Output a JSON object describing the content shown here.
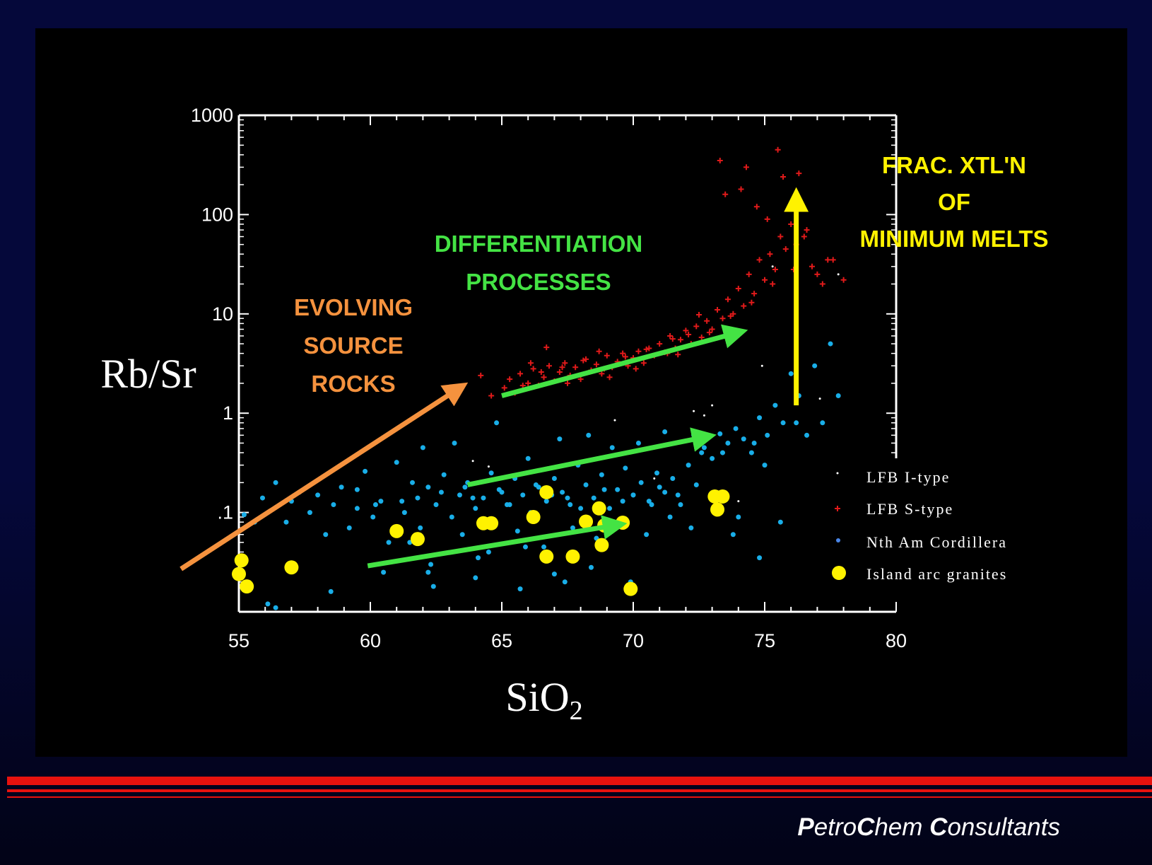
{
  "footer": {
    "brand_parts": [
      {
        "text": "P",
        "bold": true
      },
      {
        "text": "etro",
        "bold": false
      },
      {
        "text": "C",
        "bold": true
      },
      {
        "text": "hem ",
        "bold": false
      },
      {
        "text": "C",
        "bold": true
      },
      {
        "text": "onsultants",
        "bold": false
      }
    ]
  },
  "colors": {
    "background": "#05083a",
    "panel": "#000000",
    "rule": "#e8120e",
    "axis": "#ffffff",
    "i_type": "#ffffff",
    "s_type": "#e01a1a",
    "cordillera": "#19aee8",
    "island_arc": "#fff200",
    "evolving_arrow": "#f5923e",
    "differentiation_arrow": "#44e344",
    "fractionation_arrow": "#fff200"
  },
  "chart_data": {
    "type": "scatter",
    "title": "",
    "xlabel": "SiO",
    "xlabel_subscript": "2",
    "ylabel": "Rb/Sr",
    "xlim": [
      55,
      80
    ],
    "ylim": [
      0.01,
      1000
    ],
    "y_scale": "log",
    "x_ticks": [
      55,
      60,
      65,
      70,
      75,
      80
    ],
    "x_tick_labels": [
      "55",
      "60",
      "65",
      "70",
      "75",
      "80"
    ],
    "y_ticks": [
      0.1,
      1,
      10,
      100,
      1000
    ],
    "y_tick_labels": [
      ".1",
      "1",
      "10",
      "100",
      "1000"
    ],
    "legend_position": "bottom-right",
    "series": [
      {
        "name": "LFB I-type",
        "marker": "dot",
        "color": "#ffffff",
        "x": [
          63.9,
          69.3,
          72.3,
          72.7,
          73.0,
          74.0,
          74.9,
          75.3,
          77.1,
          77.8,
          64.5,
          70.8
        ],
        "y": [
          0.33,
          0.85,
          1.05,
          0.95,
          1.2,
          0.13,
          3.0,
          30,
          1.4,
          25,
          0.29,
          0.22
        ]
      },
      {
        "name": "LFB S-type",
        "marker": "plus",
        "color": "#e01a1a",
        "x": [
          63.3,
          64.2,
          64.6,
          65.1,
          65.3,
          65.5,
          65.7,
          66.0,
          66.2,
          66.4,
          66.6,
          66.8,
          67.0,
          67.2,
          67.4,
          67.6,
          67.8,
          68.0,
          68.2,
          68.4,
          68.6,
          68.8,
          69.0,
          69.2,
          69.4,
          69.6,
          69.8,
          70.0,
          70.2,
          70.4,
          70.6,
          70.8,
          71.0,
          71.2,
          71.4,
          71.6,
          71.8,
          72.0,
          72.2,
          72.4,
          72.6,
          72.8,
          73.0,
          73.2,
          73.4,
          73.6,
          73.8,
          74.0,
          74.2,
          74.4,
          74.6,
          74.8,
          75.0,
          75.2,
          75.4,
          75.6,
          75.8,
          76.0,
          76.2,
          76.4,
          76.6,
          76.8,
          77.0,
          77.2,
          77.6,
          78.0,
          65.8,
          66.5,
          67.3,
          68.1,
          68.9,
          69.7,
          70.5,
          71.3,
          72.1,
          72.9,
          73.7,
          74.5,
          75.3,
          76.1,
          66.1,
          67.5,
          68.7,
          70.1,
          71.5,
          72.5,
          73.5,
          74.3,
          75.1,
          75.7,
          76.5,
          73.3,
          74.1,
          74.7,
          75.5,
          76.3,
          77.4,
          66.7,
          69.1,
          71.7
        ],
        "y": [
          1.7,
          2.4,
          1.5,
          1.8,
          2.2,
          1.6,
          2.5,
          2.0,
          2.8,
          1.9,
          2.3,
          3.0,
          2.1,
          2.6,
          3.2,
          2.4,
          2.9,
          2.2,
          3.5,
          2.7,
          3.1,
          2.5,
          3.8,
          2.9,
          3.3,
          4.0,
          3.0,
          3.6,
          4.2,
          3.2,
          4.5,
          3.8,
          5.0,
          4.1,
          6.0,
          4.5,
          5.5,
          6.8,
          5.0,
          7.5,
          5.8,
          8.5,
          7.0,
          11,
          9.0,
          14,
          10,
          18,
          12,
          25,
          16,
          35,
          22,
          40,
          28,
          60,
          45,
          80,
          50,
          120,
          70,
          30,
          25,
          20,
          35,
          22,
          1.9,
          2.6,
          2.9,
          3.4,
          2.8,
          3.7,
          4.4,
          4.0,
          6.2,
          6.5,
          9.5,
          13,
          20,
          28,
          3.2,
          2.0,
          4.2,
          2.8,
          5.6,
          9.8,
          160,
          300,
          90,
          240,
          60,
          350,
          180,
          120,
          450,
          260,
          35,
          4.6,
          2.3,
          3.9
        ]
      },
      {
        "name": "Nth Am Cordillera",
        "marker": "dot",
        "color": "#19aee8",
        "x": [
          55.2,
          55.6,
          55.9,
          56.1,
          56.4,
          56.8,
          57.0,
          57.3,
          57.7,
          58.0,
          58.3,
          58.6,
          58.9,
          59.2,
          59.5,
          59.8,
          60.1,
          60.4,
          60.7,
          61.0,
          61.3,
          61.6,
          61.9,
          62.2,
          62.5,
          62.8,
          63.1,
          63.4,
          63.7,
          64.0,
          64.3,
          64.6,
          64.9,
          65.2,
          65.5,
          65.8,
          66.1,
          66.4,
          66.7,
          67.0,
          67.3,
          67.6,
          67.9,
          68.2,
          68.5,
          68.8,
          69.1,
          69.4,
          69.7,
          70.0,
          70.3,
          70.6,
          70.9,
          71.2,
          71.5,
          71.8,
          72.1,
          72.4,
          72.7,
          73.0,
          73.3,
          73.6,
          73.9,
          74.2,
          74.5,
          74.8,
          75.1,
          75.4,
          75.7,
          76.0,
          76.3,
          76.6,
          76.9,
          77.2,
          77.5,
          77.8,
          60.5,
          61.5,
          62.3,
          63.5,
          64.5,
          65.6,
          66.6,
          67.7,
          68.6,
          69.5,
          70.5,
          71.4,
          72.2,
          73.1,
          74.0,
          62.0,
          63.2,
          64.8,
          66.0,
          67.2,
          68.3,
          69.2,
          70.2,
          71.2,
          72.6,
          61.2,
          62.7,
          63.9,
          65.3,
          66.9,
          68.0,
          69.6,
          70.7,
          71.7,
          59.5,
          60.2,
          61.8,
          63.6,
          65.0,
          66.3,
          67.5,
          68.9,
          70.0,
          71.0,
          62.4,
          64.0,
          65.7,
          67.0,
          68.4,
          69.9,
          56.4,
          58.5,
          62.2,
          64.1,
          65.9,
          67.4,
          73.8,
          74.8,
          75.6,
          76.2,
          72.3,
          73.4,
          74.6,
          75.0
        ],
        "y": [
          0.095,
          0.08,
          0.14,
          0.012,
          0.2,
          0.08,
          0.13,
          0.16,
          0.1,
          0.15,
          0.06,
          0.12,
          0.18,
          0.07,
          0.11,
          0.26,
          0.09,
          0.13,
          0.05,
          0.32,
          0.1,
          0.2,
          0.07,
          0.18,
          0.12,
          0.24,
          0.09,
          0.15,
          0.2,
          0.11,
          0.14,
          0.25,
          0.17,
          0.12,
          0.22,
          0.15,
          0.1,
          0.18,
          0.13,
          0.22,
          0.16,
          0.12,
          0.3,
          0.19,
          0.14,
          0.24,
          0.11,
          0.17,
          0.28,
          0.15,
          0.2,
          0.13,
          0.25,
          0.16,
          0.22,
          0.12,
          0.3,
          0.19,
          0.45,
          0.35,
          0.62,
          0.5,
          0.7,
          0.55,
          0.4,
          0.9,
          0.6,
          1.2,
          0.8,
          2.5,
          1.5,
          0.6,
          3.0,
          0.8,
          5.0,
          1.5,
          0.025,
          0.05,
          0.03,
          0.06,
          0.04,
          0.065,
          0.045,
          0.07,
          0.055,
          0.08,
          0.06,
          0.09,
          0.07,
          0.11,
          0.09,
          0.45,
          0.5,
          0.8,
          0.35,
          0.55,
          0.6,
          0.45,
          0.5,
          0.65,
          0.4,
          0.13,
          0.16,
          0.14,
          0.12,
          0.15,
          0.11,
          0.13,
          0.12,
          0.15,
          0.17,
          0.12,
          0.14,
          0.18,
          0.16,
          0.19,
          0.14,
          0.17,
          0.15,
          0.18,
          0.018,
          0.022,
          0.017,
          0.024,
          0.028,
          0.02,
          0.011,
          0.016,
          0.025,
          0.035,
          0.045,
          0.02,
          0.06,
          0.035,
          0.08,
          0.8,
          0.6,
          0.4,
          0.5,
          0.3
        ]
      },
      {
        "name": "Island arc granites",
        "marker": "circle",
        "color": "#fff200",
        "x": [
          55.1,
          55.0,
          55.3,
          57.0,
          61.0,
          61.8,
          64.3,
          64.6,
          66.2,
          66.7,
          66.7,
          67.7,
          68.2,
          68.7,
          68.8,
          68.9,
          69.6,
          69.9,
          73.1,
          73.4,
          73.2
        ],
        "y": [
          0.033,
          0.024,
          0.018,
          0.028,
          0.065,
          0.054,
          0.078,
          0.078,
          0.09,
          0.16,
          0.036,
          0.036,
          0.081,
          0.11,
          0.047,
          0.074,
          0.079,
          0.017,
          0.145,
          0.145,
          0.107
        ]
      }
    ],
    "annotations": [
      {
        "kind": "arrow",
        "color": "#f5923e",
        "from": [
          52.8,
          0.027
        ],
        "to": [
          63.4,
          1.8
        ]
      },
      {
        "kind": "arrow",
        "color": "#44e344",
        "from": [
          65.0,
          1.5
        ],
        "to": [
          74.0,
          6.5
        ]
      },
      {
        "kind": "arrow",
        "color": "#44e344",
        "from": [
          63.7,
          0.19
        ],
        "to": [
          72.8,
          0.58
        ]
      },
      {
        "kind": "arrow",
        "color": "#44e344",
        "from": [
          59.9,
          0.029
        ],
        "to": [
          69.4,
          0.075
        ]
      },
      {
        "kind": "arrow",
        "color": "#fff200",
        "from": [
          76.2,
          1.2
        ],
        "to": [
          76.2,
          150
        ]
      }
    ],
    "labels": [
      {
        "lines": [
          "EVOLVING",
          "SOURCE",
          "ROCKS"
        ],
        "color": "#f5923e"
      },
      {
        "lines": [
          "DIFFERENTIATION",
          "PROCESSES"
        ],
        "color": "#44e344"
      },
      {
        "lines": [
          "FRAC. XTL'N",
          "OF",
          "MINIMUM MELTS"
        ],
        "color": "#fff200"
      }
    ]
  }
}
